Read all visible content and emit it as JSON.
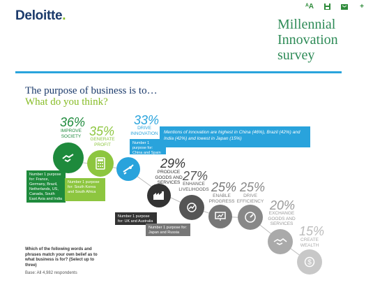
{
  "header": {
    "logo_text": "Deloitte",
    "logo_dot": ".",
    "title_line1": "Millennial",
    "title_line2": "Innovation",
    "title_line3": "survey"
  },
  "toolbar": {
    "icons": [
      "text-size-icon",
      "save-icon",
      "share-icon",
      "add-icon"
    ],
    "text_size_label": "ᴬA",
    "add_label": "+"
  },
  "headline": "The purpose of business is to…",
  "subhead": "What do you think?",
  "items": [
    {
      "pct": "36%",
      "label": "IMPROVE SOCIETY",
      "color": "#1e8a3c"
    },
    {
      "pct": "35%",
      "label": "GENERATE PROFIT",
      "color": "#8dc63f"
    },
    {
      "pct": "33%",
      "label": "DRIVE INNOVATION",
      "color": "#29a3dc"
    },
    {
      "pct": "29%",
      "label": "PRODUCE GOODS AND SERVICES",
      "color": "#333333"
    },
    {
      "pct": "27%",
      "label": "ENHANCE LIVELIHOODS",
      "color": "#555555"
    },
    {
      "pct": "25%",
      "label": "ENABLE PROGRESS",
      "color": "#777777"
    },
    {
      "pct": "25%",
      "label": "DRIVE EFFICIENCY",
      "color": "#888888"
    },
    {
      "pct": "20%",
      "label": "EXCHANGE GOODS AND SERVICES",
      "color": "#aaaaaa"
    },
    {
      "pct": "15%",
      "label": "CREATE WEALTH",
      "color": "#c8c8c8"
    }
  ],
  "callouts": {
    "improve_society": "Number 1 purpose for: France, Germany, Brazil, Netherlands, US, Canada, South East Asia and India",
    "generate_profit": "Number 1 purpose for: South Korea and South Africa",
    "drive_innovation": "Number 1 purpose for: China and Spain",
    "produce_goods": "Number 1 purpose for: UK and Australia",
    "enhance_livelihoods": "Number 1 purpose for: Japan and Russia",
    "innovation_note": "Mentions of innovation are highest in China (46%), Brazil (42%) and India (42%) and lowest in Japan (15%)"
  },
  "footer": {
    "question": "Which of the following words and phrases match your own belief as to what business is for? (Select up to three)",
    "base": "Base: All 4,982 respondents"
  }
}
